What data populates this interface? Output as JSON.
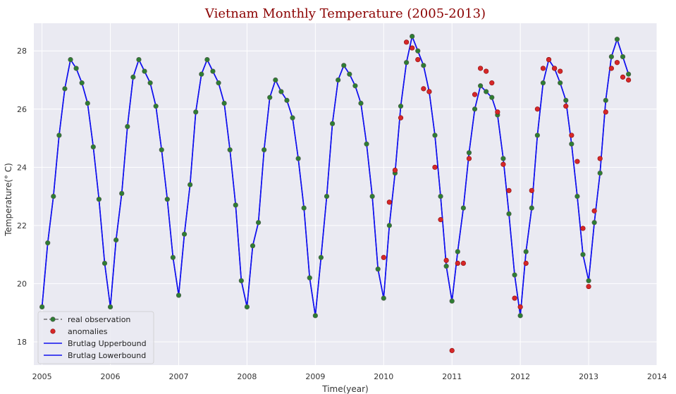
{
  "chart_data": {
    "type": "line",
    "title": "Vietnam Monthly Temperature (2005-2013)",
    "xlabel": "Time(year)",
    "ylabel": "Temperature(° C)",
    "xlim": [
      2004.88,
      2014.0
    ],
    "ylim": [
      17.2,
      28.95
    ],
    "x_ticks": [
      "2005",
      "2006",
      "2007",
      "2008",
      "2009",
      "2010",
      "2011",
      "2012",
      "2013",
      "2014"
    ],
    "y_ticks": [
      "18",
      "20",
      "22",
      "24",
      "26",
      "28"
    ],
    "grid": true,
    "legend_position": "bottom-left",
    "colors": {
      "plot_background": "#eaeaf2",
      "grid": "#ffffff",
      "observation_marker": "#2e7d32",
      "observation_line": "#555555",
      "anomaly_marker": "#d62728",
      "bound_line": "#1010ee",
      "title": "#8b0000"
    },
    "start": "2005-01",
    "frequency": "monthly",
    "series": [
      {
        "name": "real observation",
        "style": "dashed-with-markers",
        "values": [
          19.2,
          21.4,
          23.0,
          25.1,
          26.7,
          27.7,
          27.4,
          26.9,
          26.2,
          24.7,
          22.9,
          20.7,
          19.2,
          21.5,
          23.1,
          25.4,
          27.1,
          27.7,
          27.3,
          26.9,
          26.1,
          24.6,
          22.9,
          20.9,
          19.6,
          21.7,
          23.4,
          25.9,
          27.2,
          27.7,
          27.3,
          26.9,
          26.2,
          24.6,
          22.7,
          20.1,
          19.2,
          21.3,
          22.1,
          24.6,
          26.4,
          27.0,
          26.6,
          26.3,
          25.7,
          24.3,
          22.6,
          20.2,
          18.9,
          20.9,
          23.0,
          25.5,
          27.0,
          27.5,
          27.2,
          26.8,
          26.2,
          24.8,
          23.0,
          20.5,
          19.5,
          22.0,
          23.8,
          26.1,
          27.6,
          28.5,
          28.0,
          27.5,
          26.6,
          25.1,
          23.0,
          20.6,
          19.4,
          21.1,
          22.6,
          24.5,
          26.0,
          26.8,
          26.6,
          26.4,
          25.8,
          24.3,
          22.4,
          20.3,
          18.9,
          21.1,
          22.6,
          25.1,
          26.9,
          27.7,
          27.4,
          26.9,
          26.3,
          24.8,
          23.0,
          21.0,
          20.1,
          22.1,
          23.8,
          26.3,
          27.8,
          28.4,
          27.8,
          27.2
        ]
      },
      {
        "name": "anomalies",
        "style": "markers",
        "points": [
          {
            "date": "2010-01",
            "y": 20.9
          },
          {
            "date": "2010-02",
            "y": 22.8
          },
          {
            "date": "2010-03",
            "y": 23.9
          },
          {
            "date": "2010-04",
            "y": 25.7
          },
          {
            "date": "2010-05",
            "y": 28.3
          },
          {
            "date": "2010-06",
            "y": 28.1
          },
          {
            "date": "2010-07",
            "y": 27.7
          },
          {
            "date": "2010-08",
            "y": 26.7
          },
          {
            "date": "2010-09",
            "y": 26.6
          },
          {
            "date": "2010-10",
            "y": 24.0
          },
          {
            "date": "2010-11",
            "y": 22.2
          },
          {
            "date": "2010-12",
            "y": 20.8
          },
          {
            "date": "2011-01",
            "y": 17.7
          },
          {
            "date": "2011-02",
            "y": 20.7
          },
          {
            "date": "2011-03",
            "y": 20.7
          },
          {
            "date": "2011-04",
            "y": 24.3
          },
          {
            "date": "2011-05",
            "y": 26.5
          },
          {
            "date": "2011-06",
            "y": 27.4
          },
          {
            "date": "2011-07",
            "y": 27.3
          },
          {
            "date": "2011-08",
            "y": 26.9
          },
          {
            "date": "2011-09",
            "y": 25.9
          },
          {
            "date": "2011-10",
            "y": 24.1
          },
          {
            "date": "2011-11",
            "y": 23.2
          },
          {
            "date": "2011-12",
            "y": 19.5
          },
          {
            "date": "2012-01",
            "y": 19.2
          },
          {
            "date": "2012-02",
            "y": 20.7
          },
          {
            "date": "2012-03",
            "y": 23.2
          },
          {
            "date": "2012-04",
            "y": 26.0
          },
          {
            "date": "2012-05",
            "y": 27.4
          },
          {
            "date": "2012-06",
            "y": 27.7
          },
          {
            "date": "2012-07",
            "y": 27.4
          },
          {
            "date": "2012-08",
            "y": 27.3
          },
          {
            "date": "2012-09",
            "y": 26.1
          },
          {
            "date": "2012-10",
            "y": 25.1
          },
          {
            "date": "2012-11",
            "y": 24.2
          },
          {
            "date": "2012-12",
            "y": 21.9
          },
          {
            "date": "2013-01",
            "y": 19.9
          },
          {
            "date": "2013-02",
            "y": 22.5
          },
          {
            "date": "2013-03",
            "y": 24.3
          },
          {
            "date": "2013-04",
            "y": 25.9
          },
          {
            "date": "2013-05",
            "y": 27.4
          },
          {
            "date": "2013-06",
            "y": 27.6
          },
          {
            "date": "2013-07",
            "y": 27.1
          },
          {
            "date": "2013-08",
            "y": 27.0
          }
        ]
      },
      {
        "name": "Brutlag Upperbound",
        "style": "line",
        "values_note_same_as": "real observation"
      },
      {
        "name": "Brutlag Lowerbound",
        "style": "line",
        "values_note_same_as": "real observation"
      }
    ]
  }
}
